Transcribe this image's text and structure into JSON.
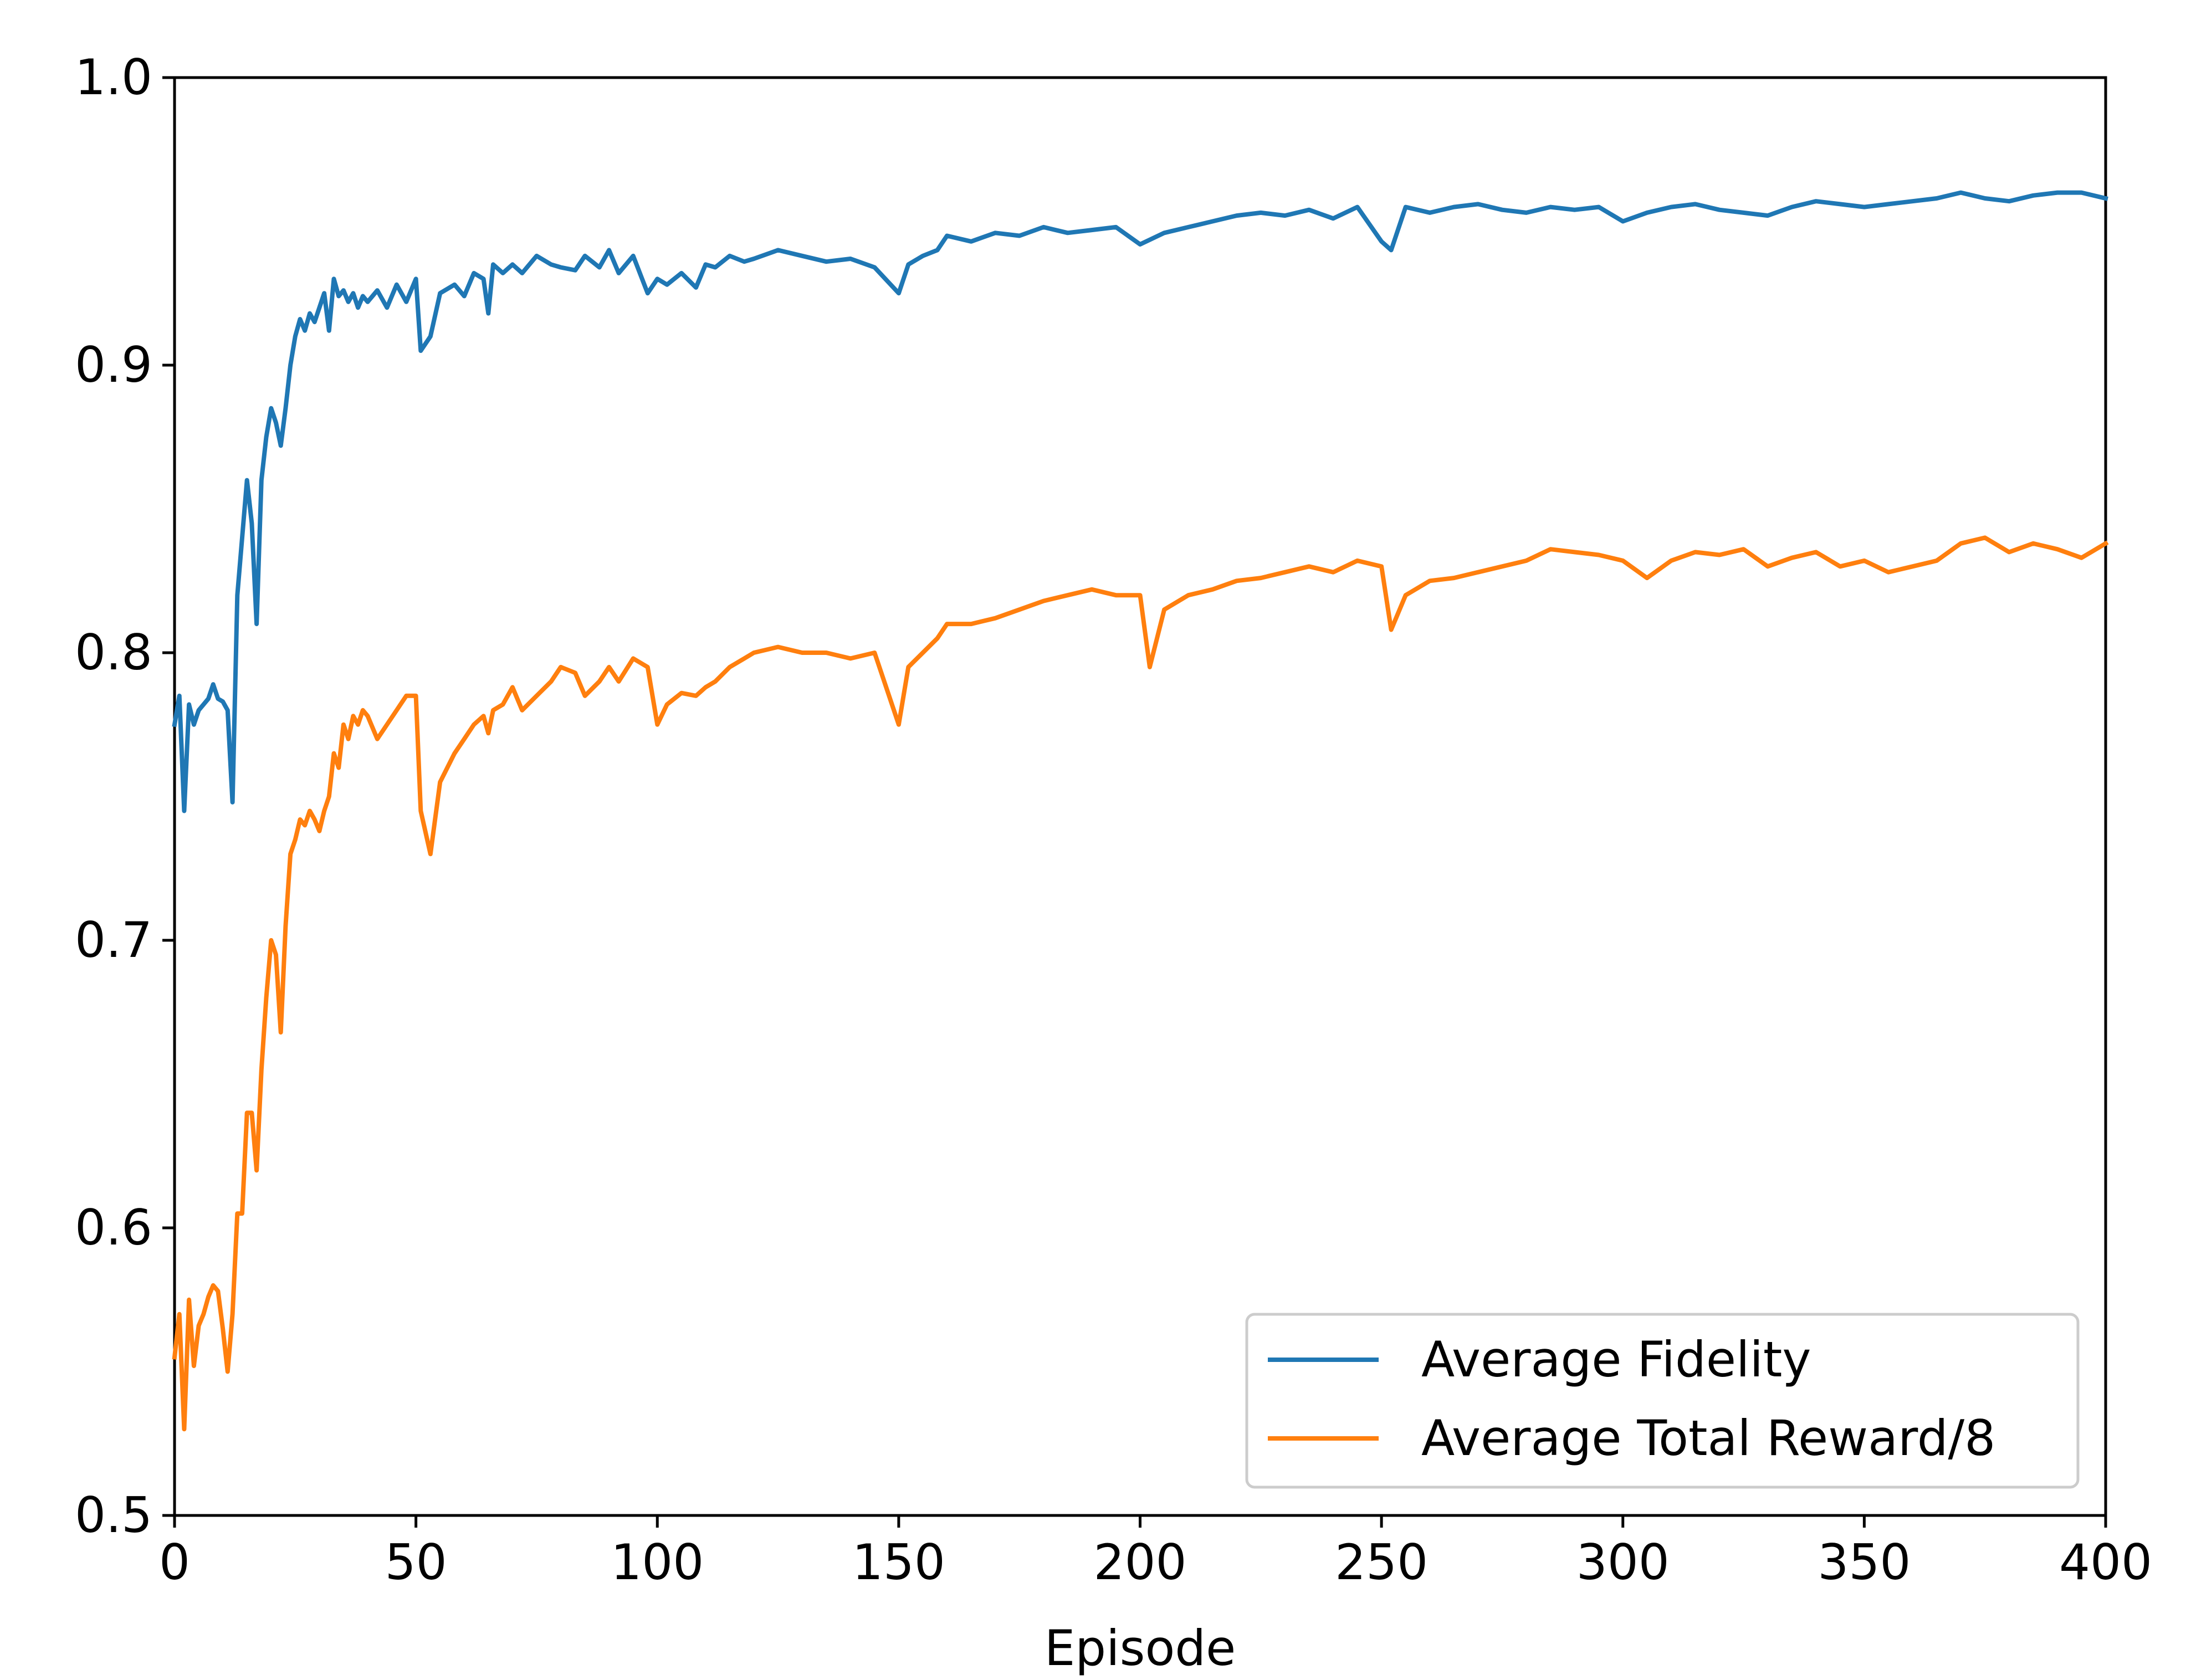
{
  "chart_data": {
    "type": "line",
    "title": "",
    "xlabel": "Episode",
    "ylabel": "",
    "xlim": [
      0,
      400
    ],
    "ylim": [
      0.5,
      1.0
    ],
    "xticks": [
      0,
      50,
      100,
      150,
      200,
      250,
      300,
      350,
      400
    ],
    "xtick_labels": [
      "0",
      "50",
      "100",
      "150",
      "200",
      "250",
      "300",
      "350",
      "400"
    ],
    "yticks": [
      0.5,
      0.6,
      0.7,
      0.8,
      0.9,
      1.0
    ],
    "ytick_labels": [
      "0.5",
      "0.6",
      "0.7",
      "0.8",
      "0.9",
      "1.0"
    ],
    "grid": false,
    "legend_position": "lower-right",
    "series": [
      {
        "name": "Average Fidelity",
        "color": "#1f77b4",
        "x": [
          0,
          1,
          2,
          3,
          4,
          5,
          6,
          7,
          8,
          9,
          10,
          11,
          12,
          13,
          14,
          15,
          16,
          17,
          18,
          19,
          20,
          21,
          22,
          23,
          24,
          25,
          26,
          27,
          28,
          29,
          30,
          31,
          32,
          33,
          34,
          35,
          36,
          37,
          38,
          39,
          40,
          42,
          44,
          46,
          48,
          50,
          51,
          53,
          55,
          58,
          60,
          62,
          64,
          65,
          66,
          68,
          70,
          72,
          75,
          78,
          80,
          83,
          85,
          88,
          90,
          92,
          95,
          98,
          100,
          102,
          105,
          108,
          110,
          112,
          115,
          118,
          120,
          125,
          130,
          135,
          140,
          145,
          150,
          152,
          155,
          158,
          160,
          165,
          170,
          175,
          180,
          185,
          190,
          195,
          200,
          205,
          210,
          215,
          220,
          225,
          230,
          235,
          240,
          245,
          250,
          252,
          255,
          260,
          265,
          270,
          275,
          280,
          285,
          290,
          295,
          300,
          305,
          310,
          315,
          320,
          325,
          330,
          335,
          340,
          345,
          350,
          355,
          360,
          365,
          370,
          375,
          380,
          385,
          390,
          395,
          400
        ],
        "values": [
          0.775,
          0.785,
          0.745,
          0.782,
          0.775,
          0.78,
          0.782,
          0.784,
          0.789,
          0.784,
          0.783,
          0.78,
          0.748,
          0.82,
          0.84,
          0.86,
          0.845,
          0.81,
          0.86,
          0.875,
          0.885,
          0.88,
          0.872,
          0.885,
          0.9,
          0.91,
          0.916,
          0.912,
          0.918,
          0.915,
          0.92,
          0.925,
          0.912,
          0.93,
          0.924,
          0.926,
          0.922,
          0.925,
          0.92,
          0.924,
          0.922,
          0.926,
          0.92,
          0.928,
          0.922,
          0.93,
          0.905,
          0.91,
          0.925,
          0.928,
          0.924,
          0.932,
          0.93,
          0.918,
          0.935,
          0.932,
          0.935,
          0.932,
          0.938,
          0.935,
          0.934,
          0.933,
          0.938,
          0.934,
          0.94,
          0.932,
          0.938,
          0.925,
          0.93,
          0.928,
          0.932,
          0.927,
          0.935,
          0.934,
          0.938,
          0.936,
          0.937,
          0.94,
          0.938,
          0.936,
          0.937,
          0.934,
          0.925,
          0.935,
          0.938,
          0.94,
          0.945,
          0.943,
          0.946,
          0.945,
          0.948,
          0.946,
          0.947,
          0.948,
          0.942,
          0.946,
          0.948,
          0.95,
          0.952,
          0.953,
          0.952,
          0.954,
          0.951,
          0.955,
          0.943,
          0.94,
          0.955,
          0.953,
          0.955,
          0.956,
          0.954,
          0.953,
          0.955,
          0.954,
          0.955,
          0.95,
          0.953,
          0.955,
          0.956,
          0.954,
          0.953,
          0.952,
          0.955,
          0.957,
          0.956,
          0.955,
          0.956,
          0.957,
          0.958,
          0.96,
          0.958,
          0.957,
          0.959,
          0.96,
          0.96,
          0.958
        ]
      },
      {
        "name": "Average Total Reward/8",
        "color": "#ff7f0e",
        "x": [
          0,
          1,
          2,
          3,
          4,
          5,
          6,
          7,
          8,
          9,
          10,
          11,
          12,
          13,
          14,
          15,
          16,
          17,
          18,
          19,
          20,
          21,
          22,
          23,
          24,
          25,
          26,
          27,
          28,
          29,
          30,
          31,
          32,
          33,
          34,
          35,
          36,
          37,
          38,
          39,
          40,
          42,
          44,
          46,
          48,
          50,
          51,
          53,
          55,
          58,
          60,
          62,
          64,
          65,
          66,
          68,
          70,
          72,
          75,
          78,
          80,
          83,
          85,
          88,
          90,
          92,
          95,
          98,
          100,
          102,
          105,
          108,
          110,
          112,
          115,
          118,
          120,
          125,
          130,
          135,
          140,
          145,
          150,
          152,
          155,
          158,
          160,
          165,
          170,
          175,
          180,
          185,
          190,
          195,
          200,
          202,
          205,
          210,
          215,
          220,
          225,
          230,
          235,
          240,
          245,
          250,
          252,
          255,
          260,
          265,
          270,
          275,
          280,
          285,
          290,
          295,
          300,
          305,
          310,
          315,
          320,
          325,
          330,
          335,
          340,
          345,
          350,
          355,
          360,
          365,
          370,
          375,
          380,
          385,
          390,
          395,
          400
        ],
        "values": [
          0.555,
          0.57,
          0.53,
          0.575,
          0.552,
          0.566,
          0.57,
          0.576,
          0.58,
          0.578,
          0.565,
          0.55,
          0.57,
          0.605,
          0.605,
          0.64,
          0.64,
          0.62,
          0.655,
          0.68,
          0.7,
          0.695,
          0.668,
          0.705,
          0.73,
          0.735,
          0.742,
          0.74,
          0.745,
          0.742,
          0.738,
          0.745,
          0.75,
          0.765,
          0.76,
          0.775,
          0.77,
          0.778,
          0.775,
          0.78,
          0.778,
          0.77,
          0.775,
          0.78,
          0.785,
          0.785,
          0.745,
          0.73,
          0.755,
          0.765,
          0.77,
          0.775,
          0.778,
          0.772,
          0.78,
          0.782,
          0.788,
          0.78,
          0.785,
          0.79,
          0.795,
          0.793,
          0.785,
          0.79,
          0.795,
          0.79,
          0.798,
          0.795,
          0.775,
          0.782,
          0.786,
          0.785,
          0.788,
          0.79,
          0.795,
          0.798,
          0.8,
          0.802,
          0.8,
          0.8,
          0.798,
          0.8,
          0.775,
          0.795,
          0.8,
          0.805,
          0.81,
          0.81,
          0.812,
          0.815,
          0.818,
          0.82,
          0.822,
          0.82,
          0.82,
          0.795,
          0.815,
          0.82,
          0.822,
          0.825,
          0.826,
          0.828,
          0.83,
          0.828,
          0.832,
          0.83,
          0.808,
          0.82,
          0.825,
          0.826,
          0.828,
          0.83,
          0.832,
          0.836,
          0.835,
          0.834,
          0.832,
          0.826,
          0.832,
          0.835,
          0.834,
          0.836,
          0.83,
          0.833,
          0.835,
          0.83,
          0.832,
          0.828,
          0.83,
          0.832,
          0.838,
          0.84,
          0.835,
          0.838,
          0.836,
          0.833,
          0.838
        ]
      }
    ]
  }
}
